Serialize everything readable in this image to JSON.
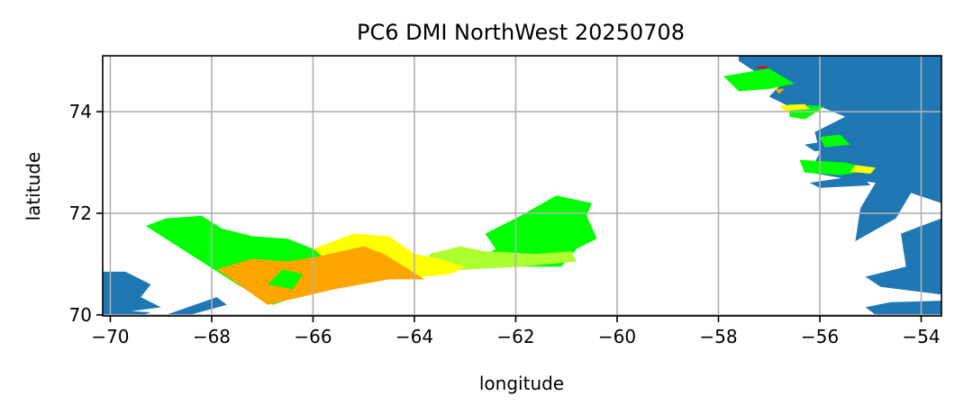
{
  "chart_data": {
    "type": "map",
    "title": "PC6 DMI NorthWest 20250708",
    "xlabel": "longitude",
    "ylabel": "latitude",
    "xlim": [
      -70.15,
      -53.6
    ],
    "ylim": [
      69.98,
      75.1
    ],
    "grid": true,
    "x_ticks": [
      -70,
      -68,
      -66,
      -64,
      -62,
      -60,
      -58,
      -56,
      -54
    ],
    "y_ticks": [
      70,
      72,
      74
    ],
    "x_tick_labels": [
      "−70",
      "−68",
      "−66",
      "−64",
      "−62",
      "−60",
      "−58",
      "−56",
      "−54"
    ],
    "y_tick_labels": [
      "70",
      "72",
      "74"
    ],
    "colors": {
      "land": "#1f77b4",
      "ice_green": "#00ff00",
      "ice_light_green": "#adff2f",
      "ice_yellow": "#ffff00",
      "ice_orange": "#ffa500",
      "ice_red": "#ff0000"
    },
    "regions": [
      {
        "name": "land-greenland-main",
        "color": "land",
        "coords": [
          [
            -57.6,
            75.1
          ],
          [
            -53.6,
            75.1
          ],
          [
            -53.6,
            72.2
          ],
          [
            -54.2,
            72.4
          ],
          [
            -54.5,
            71.9
          ],
          [
            -55.3,
            71.45
          ],
          [
            -55.2,
            72.1
          ],
          [
            -54.9,
            72.6
          ],
          [
            -55.6,
            72.7
          ],
          [
            -56.2,
            72.8
          ],
          [
            -56.0,
            73.2
          ],
          [
            -56.1,
            73.6
          ],
          [
            -55.5,
            73.9
          ],
          [
            -56.0,
            74.1
          ],
          [
            -56.6,
            74.1
          ],
          [
            -57.0,
            74.3
          ],
          [
            -56.7,
            74.6
          ],
          [
            -57.3,
            74.8
          ],
          [
            -57.6,
            75.0
          ]
        ]
      },
      {
        "name": "land-greenland-southeast",
        "color": "land",
        "coords": [
          [
            -53.6,
            71.9
          ],
          [
            -54.4,
            71.6
          ],
          [
            -54.3,
            70.95
          ],
          [
            -55.1,
            70.75
          ],
          [
            -54.8,
            70.55
          ],
          [
            -53.6,
            70.4
          ]
        ]
      },
      {
        "name": "land-disko-peninsula",
        "color": "land",
        "coords": [
          [
            -53.6,
            70.28
          ],
          [
            -54.6,
            70.25
          ],
          [
            -55.1,
            70.15
          ],
          [
            -54.9,
            70.0
          ],
          [
            -53.6,
            69.98
          ]
        ]
      },
      {
        "name": "land-island-74n",
        "color": "land",
        "coords": [
          [
            -56.3,
            73.35
          ],
          [
            -55.4,
            73.5
          ],
          [
            -55.3,
            73.3
          ],
          [
            -56.1,
            73.22
          ]
        ]
      },
      {
        "name": "land-island-73n",
        "color": "land",
        "coords": [
          [
            -56.2,
            72.6
          ],
          [
            -55.2,
            72.75
          ],
          [
            -55.0,
            72.55
          ],
          [
            -56.0,
            72.5
          ]
        ]
      },
      {
        "name": "land-baffin-coast",
        "color": "land",
        "coords": [
          [
            -70.15,
            70.85
          ],
          [
            -69.7,
            70.85
          ],
          [
            -69.2,
            70.6
          ],
          [
            -69.4,
            70.35
          ],
          [
            -69.0,
            70.15
          ],
          [
            -70.15,
            70.0
          ]
        ]
      },
      {
        "name": "land-baffin-island-a",
        "color": "land",
        "coords": [
          [
            -68.9,
            70.0
          ],
          [
            -67.9,
            70.35
          ],
          [
            -67.7,
            70.2
          ],
          [
            -68.5,
            69.98
          ]
        ]
      },
      {
        "name": "land-baffin-island-b",
        "color": "land",
        "coords": [
          [
            -70.0,
            70.1
          ],
          [
            -69.2,
            70.05
          ],
          [
            -69.4,
            69.98
          ],
          [
            -70.15,
            69.98
          ]
        ]
      },
      {
        "name": "ice-green-west",
        "color": "ice_green",
        "coords": [
          [
            -69.3,
            71.75
          ],
          [
            -68.9,
            71.9
          ],
          [
            -68.2,
            71.95
          ],
          [
            -67.8,
            71.7
          ],
          [
            -67.2,
            71.55
          ],
          [
            -66.5,
            71.5
          ],
          [
            -66.0,
            71.3
          ],
          [
            -65.5,
            71.2
          ],
          [
            -64.2,
            71.05
          ],
          [
            -63.5,
            71.15
          ],
          [
            -63.8,
            70.9
          ],
          [
            -64.5,
            70.75
          ],
          [
            -65.4,
            70.65
          ],
          [
            -66.8,
            70.2
          ],
          [
            -67.5,
            70.6
          ]
        ]
      },
      {
        "name": "ice-green-east",
        "color": "ice_green",
        "coords": [
          [
            -62.6,
            71.6
          ],
          [
            -62.0,
            71.9
          ],
          [
            -61.2,
            72.35
          ],
          [
            -60.5,
            72.2
          ],
          [
            -60.6,
            71.95
          ],
          [
            -60.4,
            71.5
          ],
          [
            -60.8,
            71.3
          ],
          [
            -61.1,
            70.95
          ],
          [
            -61.9,
            70.95
          ],
          [
            -63.0,
            70.9
          ],
          [
            -62.4,
            71.3
          ]
        ]
      },
      {
        "name": "ice-light-green",
        "color": "ice_light_green",
        "coords": [
          [
            -63.7,
            71.2
          ],
          [
            -63.1,
            71.35
          ],
          [
            -62.6,
            71.25
          ],
          [
            -61.6,
            71.2
          ],
          [
            -60.9,
            71.25
          ],
          [
            -60.8,
            71.05
          ],
          [
            -61.9,
            70.95
          ],
          [
            -63.8,
            70.85
          ]
        ]
      },
      {
        "name": "ice-yellow",
        "color": "ice_yellow",
        "coords": [
          [
            -66.0,
            71.3
          ],
          [
            -65.2,
            71.6
          ],
          [
            -64.5,
            71.55
          ],
          [
            -64.0,
            71.2
          ],
          [
            -63.5,
            71.1
          ],
          [
            -63.0,
            70.95
          ],
          [
            -63.3,
            70.8
          ],
          [
            -64.1,
            70.72
          ],
          [
            -65.5,
            70.9
          ]
        ]
      },
      {
        "name": "ice-orange",
        "color": "ice_orange",
        "coords": [
          [
            -67.9,
            70.9
          ],
          [
            -67.2,
            71.1
          ],
          [
            -66.5,
            71.05
          ],
          [
            -65.9,
            71.15
          ],
          [
            -65.0,
            71.35
          ],
          [
            -64.6,
            71.2
          ],
          [
            -64.2,
            70.95
          ],
          [
            -63.8,
            70.7
          ],
          [
            -64.5,
            70.7
          ],
          [
            -65.6,
            70.5
          ],
          [
            -66.9,
            70.2
          ]
        ]
      },
      {
        "name": "ice-green-patch-inner",
        "color": "ice_green",
        "coords": [
          [
            -66.6,
            70.9
          ],
          [
            -66.2,
            70.8
          ],
          [
            -66.4,
            70.5
          ],
          [
            -66.9,
            70.6
          ]
        ]
      },
      {
        "name": "ice-coast-green-a",
        "color": "ice_green",
        "coords": [
          [
            -57.9,
            74.7
          ],
          [
            -57.0,
            74.85
          ],
          [
            -56.5,
            74.55
          ],
          [
            -57.0,
            74.45
          ],
          [
            -57.6,
            74.4
          ]
        ]
      },
      {
        "name": "ice-coast-green-b",
        "color": "ice_green",
        "coords": [
          [
            -56.6,
            74.15
          ],
          [
            -55.9,
            74.1
          ],
          [
            -56.3,
            73.85
          ],
          [
            -56.6,
            73.9
          ]
        ]
      },
      {
        "name": "ice-coast-green-c",
        "color": "ice_green",
        "coords": [
          [
            -56.4,
            73.05
          ],
          [
            -55.5,
            73.0
          ],
          [
            -54.9,
            72.85
          ],
          [
            -55.6,
            72.75
          ],
          [
            -56.3,
            72.8
          ]
        ]
      },
      {
        "name": "ice-coast-green-d",
        "color": "ice_green",
        "coords": [
          [
            -56.0,
            73.5
          ],
          [
            -55.6,
            73.55
          ],
          [
            -55.4,
            73.35
          ],
          [
            -55.9,
            73.3
          ]
        ]
      },
      {
        "name": "ice-coast-yellow-a",
        "color": "ice_yellow",
        "coords": [
          [
            -56.8,
            74.12
          ],
          [
            -56.3,
            74.15
          ],
          [
            -56.2,
            74.05
          ],
          [
            -56.7,
            74.02
          ]
        ]
      },
      {
        "name": "ice-coast-yellow-b",
        "color": "ice_yellow",
        "coords": [
          [
            -55.3,
            72.95
          ],
          [
            -54.9,
            72.9
          ],
          [
            -55.0,
            72.78
          ],
          [
            -55.4,
            72.82
          ]
        ]
      },
      {
        "name": "ice-coast-orange",
        "color": "ice_orange",
        "coords": [
          [
            -56.9,
            74.45
          ],
          [
            -56.7,
            74.45
          ],
          [
            -56.8,
            74.35
          ]
        ]
      },
      {
        "name": "ice-coast-red",
        "color": "ice_red",
        "coords": [
          [
            -57.3,
            74.88
          ],
          [
            -57.0,
            74.9
          ],
          [
            -57.1,
            74.84
          ]
        ]
      }
    ]
  }
}
